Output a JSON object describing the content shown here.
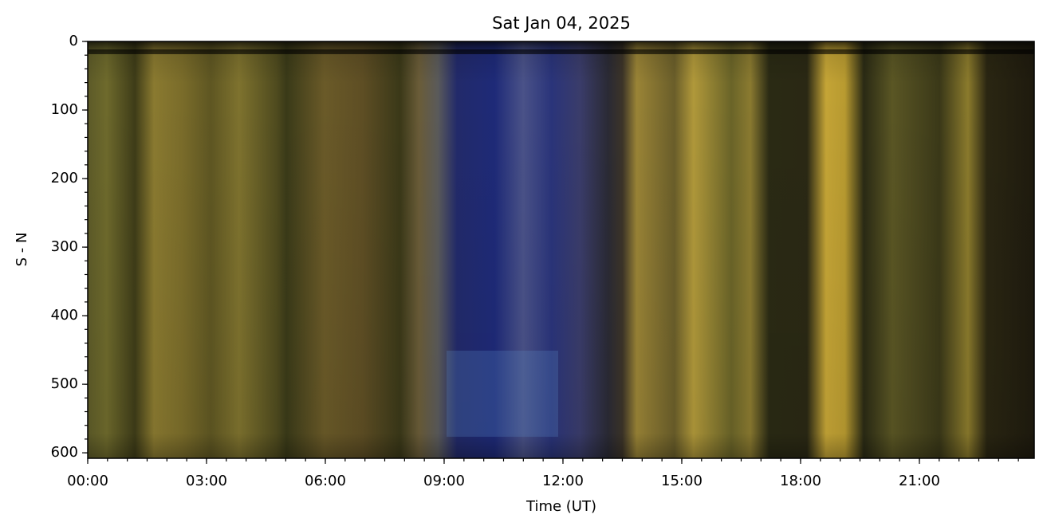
{
  "chart_data": {
    "type": "image",
    "title": "Sat Jan 04, 2025",
    "x_label": "Time (UT)",
    "y_label": "S - N",
    "xlim": [
      0,
      23.9
    ],
    "xticks": [
      {
        "value": 0,
        "label": "00:00"
      },
      {
        "value": 3,
        "label": "03:00"
      },
      {
        "value": 6,
        "label": "06:00"
      },
      {
        "value": 9,
        "label": "09:00"
      },
      {
        "value": 12,
        "label": "12:00"
      },
      {
        "value": 15,
        "label": "15:00"
      },
      {
        "value": 18,
        "label": "18:00"
      },
      {
        "value": 21,
        "label": "21:00"
      }
    ],
    "xminorstep": 0.5,
    "ylim": [
      608,
      0
    ],
    "yticks": [
      0,
      100,
      200,
      300,
      400,
      500,
      600
    ],
    "yminorstep": 20
  }
}
